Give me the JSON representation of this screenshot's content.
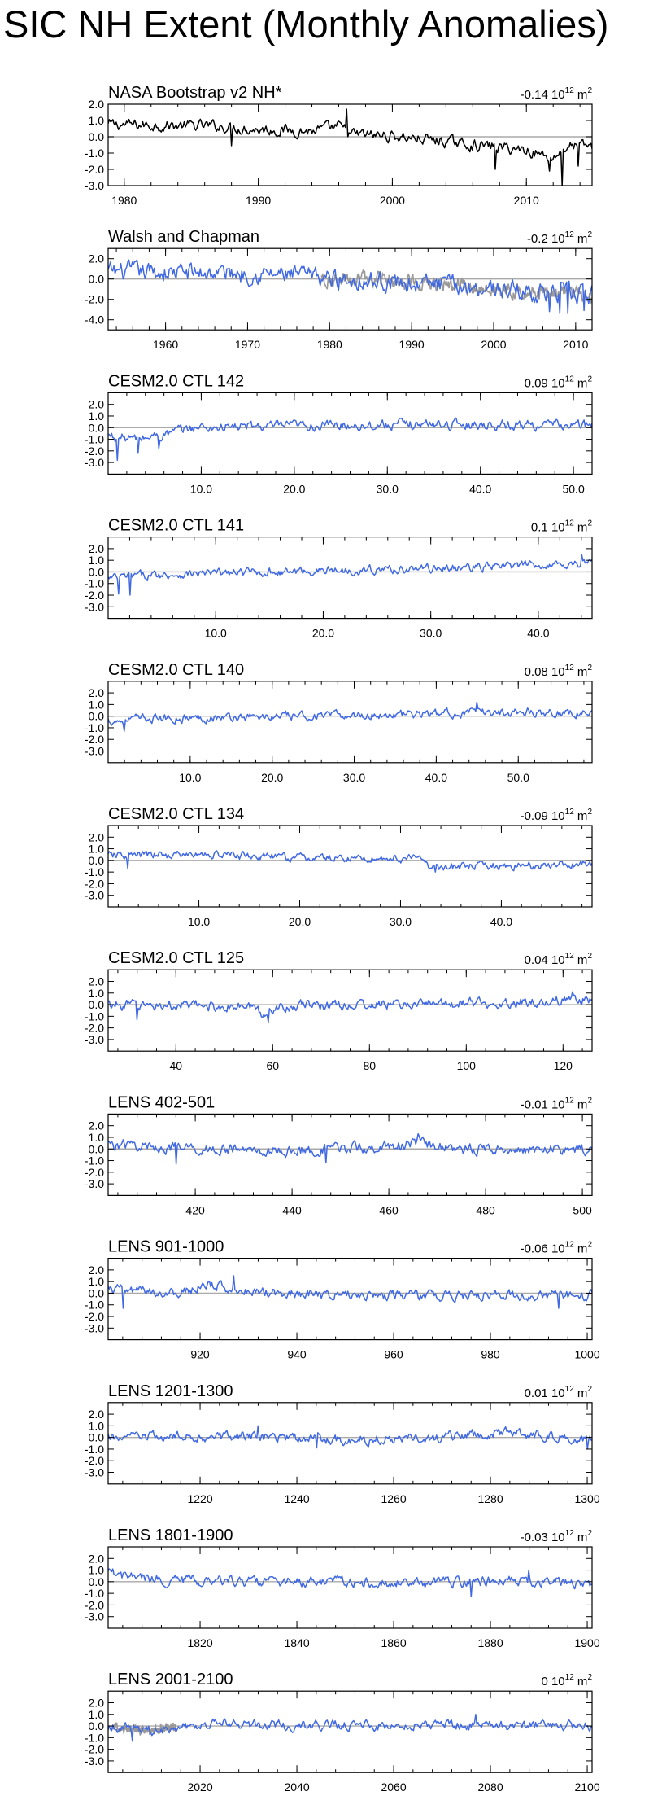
{
  "figure_title": "SIC NH Extent (Monthly Anomalies)",
  "colors": {
    "model": "#4169e1",
    "obs": "#000000",
    "obs_overlay": "#999999",
    "zero_line": "#aaaaaa"
  },
  "mean_unit": {
    "base": "10",
    "exponent": "12",
    "unit": "m",
    "unit_exponent": "2"
  },
  "chart_data": [
    {
      "type": "line",
      "title": "NASA Bootstrap v2 NH*",
      "mean": "-0.14",
      "x_range": [
        1978.8,
        2014.9
      ],
      "y_range": [
        -3.0,
        2.0
      ],
      "y_ticks": [
        "2.0",
        "1.0",
        "0.0",
        "-1.0",
        "-2.0",
        "-3.0"
      ],
      "x_ticks": [
        {
          "value": 1980,
          "label": "1980"
        },
        {
          "value": 1990,
          "label": "1990"
        },
        {
          "value": 2000,
          "label": "2000"
        },
        {
          "value": 2010,
          "label": "2010"
        }
      ],
      "series_color": "#000000",
      "overlay": false,
      "segments": [
        {
          "x0": 1978.8,
          "v": 0.75
        },
        {
          "x0": 1983.0,
          "v": 0.7
        },
        {
          "x0": 1987.0,
          "v": 0.65
        },
        {
          "x0": 1990.0,
          "v": 0.45
        },
        {
          "x0": 1994.0,
          "v": 0.35
        },
        {
          "x0": 1996.0,
          "v": 0.6
        },
        {
          "x0": 1997.0,
          "v": 0.15
        },
        {
          "x0": 2000.0,
          "v": 0.05
        },
        {
          "x0": 2003.0,
          "v": -0.2
        },
        {
          "x0": 2006.0,
          "v": -0.5
        },
        {
          "x0": 2010.0,
          "v": -0.8
        },
        {
          "x0": 2012.0,
          "v": -1.3
        },
        {
          "x0": 2013.0,
          "v": -0.6
        },
        {
          "x0": 2014.9,
          "v": -0.55
        }
      ],
      "amplitude": 0.28,
      "spikes": [
        {
          "x": 1988.0,
          "v": -0.55
        },
        {
          "x": 1996.6,
          "v": 1.7
        },
        {
          "x": 2007.7,
          "v": -2.0
        },
        {
          "x": 2011.7,
          "v": -2.1
        },
        {
          "x": 2012.7,
          "v": -3.0
        },
        {
          "x": 2013.9,
          "v": -1.8
        }
      ]
    },
    {
      "type": "line",
      "title": "Walsh and Chapman",
      "mean": "-0.2",
      "x_range": [
        1953.0,
        2012.0
      ],
      "y_range": [
        -5.0,
        3.0
      ],
      "y_ticks": [
        "2.0",
        "0.0",
        "-2.0",
        "-4.0"
      ],
      "x_ticks": [
        {
          "value": 1960,
          "label": "1960"
        },
        {
          "value": 1970,
          "label": "1970"
        },
        {
          "value": 1980,
          "label": "1980"
        },
        {
          "value": 1990,
          "label": "1990"
        },
        {
          "value": 2000,
          "label": "2000"
        },
        {
          "value": 2010,
          "label": "2010"
        }
      ],
      "series_color": "#4169e1",
      "overlay": true,
      "overlay_range": [
        1979.0,
        2012.0
      ],
      "segments": [
        {
          "x0": 1953.0,
          "v": 0.7
        },
        {
          "x0": 1970.0,
          "v": 0.6
        },
        {
          "x0": 1980.0,
          "v": 0.1
        },
        {
          "x0": 1990.0,
          "v": -0.4
        },
        {
          "x0": 2000.0,
          "v": -0.9
        },
        {
          "x0": 2005.0,
          "v": -1.3
        },
        {
          "x0": 2012.0,
          "v": -1.6
        }
      ],
      "amplitude": 0.75,
      "spikes": [
        {
          "x": 2006.8,
          "v": -3.2
        },
        {
          "x": 2008.0,
          "v": -3.4
        },
        {
          "x": 2009.0,
          "v": -3.4
        },
        {
          "x": 2011.0,
          "v": -3.1
        }
      ]
    },
    {
      "type": "line",
      "title": "CESM2.0 CTL 142",
      "mean": "0.09",
      "x_range": [
        0.0,
        52.0
      ],
      "y_range": [
        -4.0,
        3.0
      ],
      "y_ticks": [
        "2.0",
        "1.0",
        "0.0",
        "-1.0",
        "-2.0",
        "-3.0"
      ],
      "x_ticks": [
        {
          "value": 10,
          "label": "10.0"
        },
        {
          "value": 20,
          "label": "20.0"
        },
        {
          "value": 30,
          "label": "30.0"
        },
        {
          "value": 40,
          "label": "40.0"
        },
        {
          "value": 50,
          "label": "50.0"
        }
      ],
      "series_color": "#4169e1",
      "overlay": false,
      "segments": [
        {
          "x0": 0.0,
          "v": -0.7
        },
        {
          "x0": 3.0,
          "v": -1.0
        },
        {
          "x0": 6.0,
          "v": -0.6
        },
        {
          "x0": 9.0,
          "v": 0.0
        },
        {
          "x0": 20.0,
          "v": 0.15
        },
        {
          "x0": 35.0,
          "v": 0.3
        },
        {
          "x0": 52.0,
          "v": 0.2
        }
      ],
      "amplitude": 0.35,
      "spikes": [
        {
          "x": 1.0,
          "v": -2.8
        },
        {
          "x": 3.2,
          "v": -2.2
        },
        {
          "x": 5.5,
          "v": -1.8
        }
      ]
    },
    {
      "type": "line",
      "title": "CESM2.0 CTL 141",
      "mean": "0.1",
      "x_range": [
        0.0,
        45.0
      ],
      "y_range": [
        -4.0,
        3.0
      ],
      "y_ticks": [
        "2.0",
        "1.0",
        "0.0",
        "-1.0",
        "-2.0",
        "-3.0"
      ],
      "x_ticks": [
        {
          "value": 10,
          "label": "10.0"
        },
        {
          "value": 20,
          "label": "20.0"
        },
        {
          "value": 30,
          "label": "30.0"
        },
        {
          "value": 40,
          "label": "40.0"
        }
      ],
      "series_color": "#4169e1",
      "overlay": false,
      "segments": [
        {
          "x0": 0.0,
          "v": -0.6
        },
        {
          "x0": 3.0,
          "v": -0.3
        },
        {
          "x0": 10.0,
          "v": -0.1
        },
        {
          "x0": 20.0,
          "v": 0.1
        },
        {
          "x0": 35.0,
          "v": 0.4
        },
        {
          "x0": 45.0,
          "v": 0.8
        }
      ],
      "amplitude": 0.3,
      "spikes": [
        {
          "x": 1.0,
          "v": -1.9
        },
        {
          "x": 2.0,
          "v": -2.0
        },
        {
          "x": 44.0,
          "v": 1.5
        }
      ]
    },
    {
      "type": "line",
      "title": "CESM2.0 CTL 140",
      "mean": "0.08",
      "x_range": [
        0.0,
        59.0
      ],
      "y_range": [
        -4.0,
        3.0
      ],
      "y_ticks": [
        "2.0",
        "1.0",
        "0.0",
        "-1.0",
        "-2.0",
        "-3.0"
      ],
      "x_ticks": [
        {
          "value": 10,
          "label": "10.0"
        },
        {
          "value": 20,
          "label": "20.0"
        },
        {
          "value": 30,
          "label": "30.0"
        },
        {
          "value": 40,
          "label": "40.0"
        },
        {
          "value": 50,
          "label": "50.0"
        }
      ],
      "series_color": "#4169e1",
      "overlay": false,
      "segments": [
        {
          "x0": 0.0,
          "v": -0.4
        },
        {
          "x0": 5.0,
          "v": -0.2
        },
        {
          "x0": 20.0,
          "v": -0.05
        },
        {
          "x0": 40.0,
          "v": 0.2
        },
        {
          "x0": 50.0,
          "v": 0.4
        },
        {
          "x0": 59.0,
          "v": 0.2
        }
      ],
      "amplitude": 0.3,
      "spikes": [
        {
          "x": 2.0,
          "v": -1.3
        },
        {
          "x": 45.0,
          "v": 1.2
        }
      ]
    },
    {
      "type": "line",
      "title": "CESM2.0 CTL 134",
      "mean": "-0.09",
      "x_range": [
        1.0,
        49.0
      ],
      "y_range": [
        -4.0,
        3.0
      ],
      "y_ticks": [
        "2.0",
        "1.0",
        "0.0",
        "-1.0",
        "-2.0",
        "-3.0"
      ],
      "x_ticks": [
        {
          "value": 10,
          "label": "10.0"
        },
        {
          "value": 20,
          "label": "20.0"
        },
        {
          "value": 30,
          "label": "30.0"
        },
        {
          "value": 40,
          "label": "40.0"
        }
      ],
      "series_color": "#4169e1",
      "overlay": false,
      "segments": [
        {
          "x0": 1.0,
          "v": 0.4
        },
        {
          "x0": 12.0,
          "v": 0.5
        },
        {
          "x0": 20.0,
          "v": 0.2
        },
        {
          "x0": 32.0,
          "v": 0.15
        },
        {
          "x0": 33.0,
          "v": -0.6
        },
        {
          "x0": 40.0,
          "v": -0.5
        },
        {
          "x0": 49.0,
          "v": -0.3
        }
      ],
      "amplitude": 0.28,
      "spikes": [
        {
          "x": 3.0,
          "v": -0.7
        },
        {
          "x": 33.5,
          "v": -1.0
        }
      ]
    },
    {
      "type": "line",
      "title": "CESM2.0 CTL 125",
      "mean": "0.04",
      "x_range": [
        26.0,
        126.0
      ],
      "y_range": [
        -4.0,
        3.0
      ],
      "y_ticks": [
        "2.0",
        "1.0",
        "0.0",
        "-1.0",
        "-2.0",
        "-3.0"
      ],
      "x_ticks": [
        {
          "value": 40,
          "label": "40"
        },
        {
          "value": 60,
          "label": "60"
        },
        {
          "value": 80,
          "label": "80"
        },
        {
          "value": 100,
          "label": "100"
        },
        {
          "value": 120,
          "label": "120"
        }
      ],
      "series_color": "#4169e1",
      "overlay": false,
      "segments": [
        {
          "x0": 26.0,
          "v": 0.0
        },
        {
          "x0": 56.0,
          "v": -0.2
        },
        {
          "x0": 58.0,
          "v": -0.9
        },
        {
          "x0": 61.0,
          "v": -0.1
        },
        {
          "x0": 100.0,
          "v": 0.1
        },
        {
          "x0": 126.0,
          "v": 0.4
        }
      ],
      "amplitude": 0.35,
      "spikes": [
        {
          "x": 32.0,
          "v": -1.3
        },
        {
          "x": 59.0,
          "v": -1.5
        },
        {
          "x": 122.0,
          "v": 1.1
        }
      ]
    },
    {
      "type": "line",
      "title": "LENS 402-501",
      "mean": "-0.01",
      "x_range": [
        402.0,
        502.0
      ],
      "y_range": [
        -4.0,
        3.0
      ],
      "y_ticks": [
        "2.0",
        "1.0",
        "0.0",
        "-1.0",
        "-2.0",
        "-3.0"
      ],
      "x_ticks": [
        {
          "value": 420,
          "label": "420"
        },
        {
          "value": 440,
          "label": "440"
        },
        {
          "value": 460,
          "label": "460"
        },
        {
          "value": 480,
          "label": "480"
        },
        {
          "value": 500,
          "label": "500"
        }
      ],
      "series_color": "#4169e1",
      "overlay": false,
      "segments": [
        {
          "x0": 402.0,
          "v": 0.4
        },
        {
          "x0": 410.0,
          "v": 0.2
        },
        {
          "x0": 420.0,
          "v": 0.0
        },
        {
          "x0": 440.0,
          "v": -0.2
        },
        {
          "x0": 460.0,
          "v": 0.2
        },
        {
          "x0": 466.0,
          "v": 0.5
        },
        {
          "x0": 475.0,
          "v": 0.0
        },
        {
          "x0": 502.0,
          "v": -0.1
        }
      ],
      "amplitude": 0.38,
      "spikes": [
        {
          "x": 416.0,
          "v": -1.3
        },
        {
          "x": 447.0,
          "v": -1.2
        },
        {
          "x": 466.0,
          "v": 1.3
        }
      ]
    },
    {
      "type": "line",
      "title": "LENS 901-1000",
      "mean": "-0.06",
      "x_range": [
        901.0,
        1001.0
      ],
      "y_range": [
        -4.0,
        3.0
      ],
      "y_ticks": [
        "2.0",
        "1.0",
        "0.0",
        "-1.0",
        "-2.0",
        "-3.0"
      ],
      "x_ticks": [
        {
          "value": 920,
          "label": "920"
        },
        {
          "value": 940,
          "label": "940"
        },
        {
          "value": 960,
          "label": "960"
        },
        {
          "value": 980,
          "label": "980"
        },
        {
          "value": 1000,
          "label": "1000"
        }
      ],
      "series_color": "#4169e1",
      "overlay": false,
      "segments": [
        {
          "x0": 901.0,
          "v": 0.3
        },
        {
          "x0": 915.0,
          "v": 0.0
        },
        {
          "x0": 922.0,
          "v": 0.7
        },
        {
          "x0": 930.0,
          "v": 0.2
        },
        {
          "x0": 945.0,
          "v": -0.1
        },
        {
          "x0": 970.0,
          "v": -0.2
        },
        {
          "x0": 1001.0,
          "v": -0.2
        }
      ],
      "amplitude": 0.35,
      "spikes": [
        {
          "x": 904.0,
          "v": -1.3
        },
        {
          "x": 927.0,
          "v": 1.5
        },
        {
          "x": 994.0,
          "v": -1.3
        }
      ]
    },
    {
      "type": "line",
      "title": "LENS 1201-1300",
      "mean": "0.01",
      "x_range": [
        1201.0,
        1301.0
      ],
      "y_range": [
        -4.0,
        3.0
      ],
      "y_ticks": [
        "2.0",
        "1.0",
        "0.0",
        "-1.0",
        "-2.0",
        "-3.0"
      ],
      "x_ticks": [
        {
          "value": 1220,
          "label": "1220"
        },
        {
          "value": 1240,
          "label": "1240"
        },
        {
          "value": 1260,
          "label": "1260"
        },
        {
          "value": 1280,
          "label": "1280"
        },
        {
          "value": 1300,
          "label": "1300"
        }
      ],
      "series_color": "#4169e1",
      "overlay": false,
      "segments": [
        {
          "x0": 1201.0,
          "v": 0.0
        },
        {
          "x0": 1230.0,
          "v": 0.1
        },
        {
          "x0": 1250.0,
          "v": -0.2
        },
        {
          "x0": 1270.0,
          "v": 0.0
        },
        {
          "x0": 1285.0,
          "v": 0.4
        },
        {
          "x0": 1301.0,
          "v": -0.2
        }
      ],
      "amplitude": 0.35,
      "spikes": [
        {
          "x": 1232.0,
          "v": 1.0
        },
        {
          "x": 1244.0,
          "v": -0.9
        },
        {
          "x": 1300.0,
          "v": -1.0
        }
      ]
    },
    {
      "type": "line",
      "title": "LENS 1801-1900",
      "mean": "-0.03",
      "x_range": [
        1801.0,
        1901.0
      ],
      "y_range": [
        -4.0,
        3.0
      ],
      "y_ticks": [
        "2.0",
        "1.0",
        "0.0",
        "-1.0",
        "-2.0",
        "-3.0"
      ],
      "x_ticks": [
        {
          "value": 1820,
          "label": "1820"
        },
        {
          "value": 1840,
          "label": "1840"
        },
        {
          "value": 1860,
          "label": "1860"
        },
        {
          "value": 1880,
          "label": "1880"
        },
        {
          "value": 1900,
          "label": "1900"
        }
      ],
      "series_color": "#4169e1",
      "overlay": false,
      "segments": [
        {
          "x0": 1801.0,
          "v": 0.6
        },
        {
          "x0": 1810.0,
          "v": 0.2
        },
        {
          "x0": 1830.0,
          "v": 0.0
        },
        {
          "x0": 1860.0,
          "v": -0.1
        },
        {
          "x0": 1885.0,
          "v": 0.1
        },
        {
          "x0": 1901.0,
          "v": -0.1
        }
      ],
      "amplitude": 0.35,
      "spikes": [
        {
          "x": 1802.0,
          "v": 1.1
        },
        {
          "x": 1876.0,
          "v": -1.3
        },
        {
          "x": 1888.0,
          "v": 1.0
        }
      ]
    },
    {
      "type": "line",
      "title": "LENS 2001-2100",
      "mean": "0",
      "x_range": [
        2001.0,
        2101.0
      ],
      "y_range": [
        -4.0,
        3.0
      ],
      "y_ticks": [
        "2.0",
        "1.0",
        "0.0",
        "-1.0",
        "-2.0",
        "-3.0"
      ],
      "x_ticks": [
        {
          "value": 2020,
          "label": "2020"
        },
        {
          "value": 2040,
          "label": "2040"
        },
        {
          "value": 2060,
          "label": "2060"
        },
        {
          "value": 2080,
          "label": "2080"
        },
        {
          "value": 2100,
          "label": "2100"
        }
      ],
      "series_color": "#4169e1",
      "overlay": true,
      "overlay_range": [
        2002.0,
        2015.0
      ],
      "segments": [
        {
          "x0": 2001.0,
          "v": 0.0
        },
        {
          "x0": 2010.0,
          "v": -0.4
        },
        {
          "x0": 2020.0,
          "v": 0.2
        },
        {
          "x0": 2040.0,
          "v": 0.0
        },
        {
          "x0": 2070.0,
          "v": 0.1
        },
        {
          "x0": 2101.0,
          "v": 0.0
        }
      ],
      "amplitude": 0.35,
      "spikes": [
        {
          "x": 2006.0,
          "v": -1.3
        },
        {
          "x": 2077.0,
          "v": 1.0
        }
      ]
    }
  ]
}
